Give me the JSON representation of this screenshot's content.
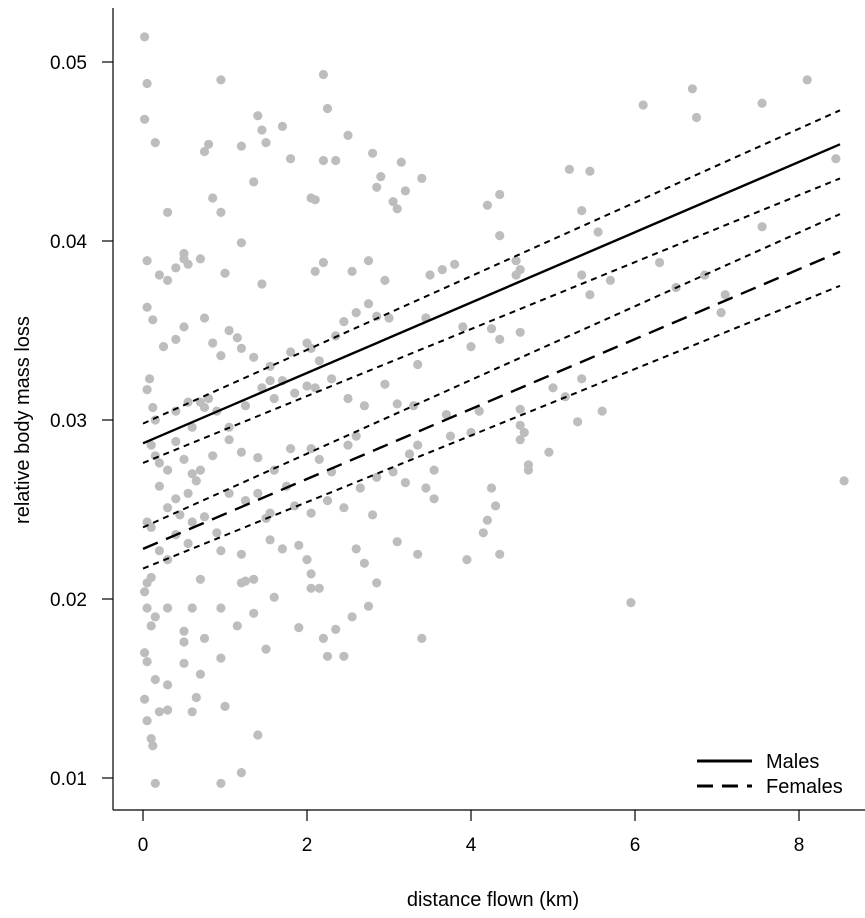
{
  "chart_data": {
    "type": "scatter",
    "xlabel": "distance flown (km)",
    "ylabel": "relative body mass loss",
    "xlim": [
      -0.3,
      8.6
    ],
    "ylim": [
      0.008,
      0.0528
    ],
    "xticks": [
      0,
      2,
      4,
      6,
      8
    ],
    "yticks": [
      0.01,
      0.02,
      0.03,
      0.04,
      0.05
    ],
    "ytick_labels": [
      "0.01",
      "0.02",
      "0.03",
      "0.04",
      "0.05"
    ],
    "grid": false,
    "legend_position": "bottom-right",
    "legend": [
      {
        "name": "Males",
        "style": "solid"
      },
      {
        "name": "Females",
        "style": "dashed"
      }
    ],
    "point_color": "#bdbdbd",
    "lines": [
      {
        "name": "Males",
        "style": "solid",
        "x": [
          0,
          8.5
        ],
        "y": [
          0.0287,
          0.0454
        ]
      },
      {
        "name": "Males upper CI",
        "style": "dotted",
        "x": [
          0,
          8.5
        ],
        "y": [
          0.0298,
          0.0473
        ]
      },
      {
        "name": "Males lower CI",
        "style": "dotted",
        "x": [
          0,
          8.5
        ],
        "y": [
          0.0276,
          0.0435
        ]
      },
      {
        "name": "Females",
        "style": "dashed",
        "x": [
          0,
          8.5
        ],
        "y": [
          0.0228,
          0.0394
        ]
      },
      {
        "name": "Females upper CI",
        "style": "dotted",
        "x": [
          0,
          8.5
        ],
        "y": [
          0.024,
          0.0415
        ]
      },
      {
        "name": "Females lower CI",
        "style": "dotted",
        "x": [
          0,
          8.5
        ],
        "y": [
          0.0217,
          0.0375
        ]
      }
    ],
    "points": [
      [
        0.02,
        0.0514
      ],
      [
        0.05,
        0.0488
      ],
      [
        0.02,
        0.0468
      ],
      [
        0.15,
        0.0455
      ],
      [
        0.95,
        0.049
      ],
      [
        2.2,
        0.0493
      ],
      [
        2.25,
        0.0474
      ],
      [
        1.4,
        0.047
      ],
      [
        1.7,
        0.0464
      ],
      [
        1.45,
        0.0462
      ],
      [
        1.5,
        0.0455
      ],
      [
        2.5,
        0.0459
      ],
      [
        1.2,
        0.0453
      ],
      [
        0.8,
        0.0454
      ],
      [
        0.75,
        0.045
      ],
      [
        2.35,
        0.0445
      ],
      [
        2.2,
        0.0445
      ],
      [
        2.8,
        0.0449
      ],
      [
        3.15,
        0.0444
      ],
      [
        1.8,
        0.0446
      ],
      [
        2.9,
        0.0436
      ],
      [
        3.4,
        0.0435
      ],
      [
        2.85,
        0.043
      ],
      [
        3.2,
        0.0428
      ],
      [
        3.05,
        0.0422
      ],
      [
        3.1,
        0.0418
      ],
      [
        2.05,
        0.0424
      ],
      [
        2.1,
        0.0423
      ],
      [
        0.85,
        0.0424
      ],
      [
        1.35,
        0.0433
      ],
      [
        0.95,
        0.0416
      ],
      [
        0.3,
        0.0416
      ],
      [
        4.2,
        0.042
      ],
      [
        4.35,
        0.0426
      ],
      [
        6.1,
        0.0476
      ],
      [
        6.7,
        0.0485
      ],
      [
        6.75,
        0.0469
      ],
      [
        7.55,
        0.0477
      ],
      [
        8.1,
        0.049
      ],
      [
        8.45,
        0.0446
      ],
      [
        8.55,
        0.0266
      ],
      [
        5.2,
        0.044
      ],
      [
        5.45,
        0.0439
      ],
      [
        5.35,
        0.0417
      ],
      [
        5.55,
        0.0405
      ],
      [
        4.35,
        0.0403
      ],
      [
        0.05,
        0.0389
      ],
      [
        0.2,
        0.0381
      ],
      [
        0.3,
        0.0378
      ],
      [
        0.4,
        0.0385
      ],
      [
        0.5,
        0.0393
      ],
      [
        0.5,
        0.039
      ],
      [
        0.55,
        0.0387
      ],
      [
        0.7,
        0.039
      ],
      [
        1.0,
        0.0382
      ],
      [
        1.2,
        0.0399
      ],
      [
        1.45,
        0.0376
      ],
      [
        2.1,
        0.0383
      ],
      [
        2.2,
        0.0388
      ],
      [
        2.55,
        0.0383
      ],
      [
        2.75,
        0.0389
      ],
      [
        2.95,
        0.0378
      ],
      [
        3.5,
        0.0381
      ],
      [
        3.65,
        0.0384
      ],
      [
        3.8,
        0.0387
      ],
      [
        4.55,
        0.0381
      ],
      [
        4.55,
        0.0389
      ],
      [
        4.6,
        0.0384
      ],
      [
        5.35,
        0.0381
      ],
      [
        5.7,
        0.0378
      ],
      [
        6.3,
        0.0388
      ],
      [
        6.5,
        0.0374
      ],
      [
        6.85,
        0.0381
      ],
      [
        7.1,
        0.037
      ],
      [
        7.05,
        0.036
      ],
      [
        7.55,
        0.0408
      ],
      [
        0.05,
        0.0363
      ],
      [
        0.12,
        0.0356
      ],
      [
        0.25,
        0.0341
      ],
      [
        0.4,
        0.0345
      ],
      [
        0.5,
        0.0352
      ],
      [
        0.75,
        0.0357
      ],
      [
        0.85,
        0.0343
      ],
      [
        0.95,
        0.0336
      ],
      [
        1.05,
        0.035
      ],
      [
        1.15,
        0.0346
      ],
      [
        1.2,
        0.034
      ],
      [
        1.35,
        0.0335
      ],
      [
        1.55,
        0.033
      ],
      [
        1.8,
        0.0338
      ],
      [
        2.0,
        0.0343
      ],
      [
        2.05,
        0.034
      ],
      [
        2.15,
        0.0333
      ],
      [
        2.35,
        0.0347
      ],
      [
        2.45,
        0.0355
      ],
      [
        2.6,
        0.036
      ],
      [
        2.75,
        0.0365
      ],
      [
        2.85,
        0.0358
      ],
      [
        3.0,
        0.0357
      ],
      [
        3.45,
        0.0357
      ],
      [
        3.9,
        0.0352
      ],
      [
        4.0,
        0.0341
      ],
      [
        4.25,
        0.0351
      ],
      [
        4.35,
        0.0345
      ],
      [
        4.6,
        0.0349
      ],
      [
        5.45,
        0.037
      ],
      [
        0.05,
        0.0317
      ],
      [
        0.08,
        0.0323
      ],
      [
        0.12,
        0.0307
      ],
      [
        0.15,
        0.03
      ],
      [
        0.4,
        0.0305
      ],
      [
        0.55,
        0.031
      ],
      [
        0.6,
        0.0296
      ],
      [
        0.7,
        0.031
      ],
      [
        0.75,
        0.0307
      ],
      [
        0.8,
        0.0312
      ],
      [
        0.9,
        0.0305
      ],
      [
        1.05,
        0.0296
      ],
      [
        1.25,
        0.0308
      ],
      [
        1.45,
        0.0318
      ],
      [
        1.55,
        0.0322
      ],
      [
        1.6,
        0.0312
      ],
      [
        1.7,
        0.0322
      ],
      [
        1.85,
        0.0315
      ],
      [
        2.0,
        0.0319
      ],
      [
        2.1,
        0.0318
      ],
      [
        2.3,
        0.0323
      ],
      [
        2.5,
        0.0312
      ],
      [
        2.7,
        0.0308
      ],
      [
        2.95,
        0.032
      ],
      [
        3.1,
        0.0309
      ],
      [
        3.35,
        0.0331
      ],
      [
        3.3,
        0.0308
      ],
      [
        3.7,
        0.0303
      ],
      [
        4.1,
        0.0305
      ],
      [
        4.6,
        0.0306
      ],
      [
        4.6,
        0.0297
      ],
      [
        4.65,
        0.0293
      ],
      [
        5.0,
        0.0318
      ],
      [
        5.15,
        0.0313
      ],
      [
        5.35,
        0.0323
      ],
      [
        5.6,
        0.0305
      ],
      [
        0.1,
        0.0286
      ],
      [
        0.15,
        0.028
      ],
      [
        0.2,
        0.0276
      ],
      [
        0.3,
        0.0272
      ],
      [
        0.4,
        0.0288
      ],
      [
        0.5,
        0.0278
      ],
      [
        0.6,
        0.027
      ],
      [
        0.65,
        0.0266
      ],
      [
        0.7,
        0.0272
      ],
      [
        0.85,
        0.028
      ],
      [
        1.05,
        0.0289
      ],
      [
        1.2,
        0.0282
      ],
      [
        1.4,
        0.0279
      ],
      [
        1.6,
        0.0272
      ],
      [
        1.8,
        0.0284
      ],
      [
        2.05,
        0.0284
      ],
      [
        2.15,
        0.0278
      ],
      [
        2.3,
        0.0271
      ],
      [
        2.5,
        0.0286
      ],
      [
        2.6,
        0.0291
      ],
      [
        2.85,
        0.0268
      ],
      [
        3.05,
        0.0271
      ],
      [
        3.25,
        0.0281
      ],
      [
        3.35,
        0.0286
      ],
      [
        3.55,
        0.0272
      ],
      [
        3.75,
        0.0291
      ],
      [
        4.0,
        0.0293
      ],
      [
        4.6,
        0.0289
      ],
      [
        4.7,
        0.0272
      ],
      [
        4.7,
        0.0275
      ],
      [
        4.95,
        0.0282
      ],
      [
        5.3,
        0.0299
      ],
      [
        0.05,
        0.0243
      ],
      [
        0.1,
        0.024
      ],
      [
        0.2,
        0.0263
      ],
      [
        0.3,
        0.0251
      ],
      [
        0.4,
        0.0256
      ],
      [
        0.45,
        0.0247
      ],
      [
        0.55,
        0.0259
      ],
      [
        0.6,
        0.0243
      ],
      [
        0.75,
        0.0246
      ],
      [
        0.9,
        0.0237
      ],
      [
        1.05,
        0.0259
      ],
      [
        1.25,
        0.0255
      ],
      [
        1.4,
        0.0259
      ],
      [
        1.5,
        0.0245
      ],
      [
        1.55,
        0.0248
      ],
      [
        1.75,
        0.0263
      ],
      [
        1.85,
        0.0252
      ],
      [
        2.05,
        0.0248
      ],
      [
        2.25,
        0.0255
      ],
      [
        2.45,
        0.0251
      ],
      [
        2.65,
        0.0262
      ],
      [
        2.8,
        0.0247
      ],
      [
        3.2,
        0.0265
      ],
      [
        3.45,
        0.0262
      ],
      [
        3.55,
        0.0256
      ],
      [
        4.2,
        0.0244
      ],
      [
        4.3,
        0.0252
      ],
      [
        4.25,
        0.0262
      ],
      [
        0.05,
        0.0209
      ],
      [
        0.1,
        0.0212
      ],
      [
        0.2,
        0.0227
      ],
      [
        0.3,
        0.0222
      ],
      [
        0.4,
        0.0236
      ],
      [
        0.55,
        0.0231
      ],
      [
        0.7,
        0.0211
      ],
      [
        0.95,
        0.0227
      ],
      [
        1.2,
        0.0225
      ],
      [
        1.25,
        0.021
      ],
      [
        1.35,
        0.0211
      ],
      [
        1.55,
        0.0233
      ],
      [
        1.7,
        0.0228
      ],
      [
        1.9,
        0.023
      ],
      [
        2.0,
        0.0222
      ],
      [
        2.05,
        0.0214
      ],
      [
        2.6,
        0.0228
      ],
      [
        2.7,
        0.022
      ],
      [
        2.85,
        0.0209
      ],
      [
        3.1,
        0.0232
      ],
      [
        3.35,
        0.0225
      ],
      [
        3.95,
        0.0222
      ],
      [
        4.15,
        0.0237
      ],
      [
        4.35,
        0.0225
      ],
      [
        0.02,
        0.0204
      ],
      [
        0.05,
        0.0195
      ],
      [
        0.1,
        0.0185
      ],
      [
        0.15,
        0.019
      ],
      [
        0.3,
        0.0195
      ],
      [
        0.5,
        0.0182
      ],
      [
        0.5,
        0.0176
      ],
      [
        0.6,
        0.0195
      ],
      [
        0.75,
        0.0178
      ],
      [
        0.95,
        0.0195
      ],
      [
        1.15,
        0.0185
      ],
      [
        1.2,
        0.0209
      ],
      [
        1.35,
        0.0192
      ],
      [
        1.6,
        0.0201
      ],
      [
        1.9,
        0.0184
      ],
      [
        2.05,
        0.0206
      ],
      [
        2.15,
        0.0206
      ],
      [
        2.2,
        0.0178
      ],
      [
        2.35,
        0.0183
      ],
      [
        2.55,
        0.019
      ],
      [
        2.75,
        0.0196
      ],
      [
        3.4,
        0.0178
      ],
      [
        5.95,
        0.0198
      ],
      [
        0.02,
        0.017
      ],
      [
        0.05,
        0.0165
      ],
      [
        0.15,
        0.0155
      ],
      [
        0.3,
        0.0152
      ],
      [
        0.5,
        0.0164
      ],
      [
        0.7,
        0.0158
      ],
      [
        0.95,
        0.0167
      ],
      [
        1.5,
        0.0172
      ],
      [
        2.25,
        0.0168
      ],
      [
        2.45,
        0.0168
      ],
      [
        0.02,
        0.0144
      ],
      [
        0.05,
        0.0132
      ],
      [
        0.1,
        0.0122
      ],
      [
        0.12,
        0.0118
      ],
      [
        0.2,
        0.0137
      ],
      [
        0.3,
        0.0138
      ],
      [
        0.6,
        0.0137
      ],
      [
        0.65,
        0.0145
      ],
      [
        1.0,
        0.014
      ],
      [
        1.4,
        0.0124
      ],
      [
        0.15,
        0.0097
      ],
      [
        0.95,
        0.0097
      ],
      [
        1.2,
        0.0103
      ]
    ]
  }
}
